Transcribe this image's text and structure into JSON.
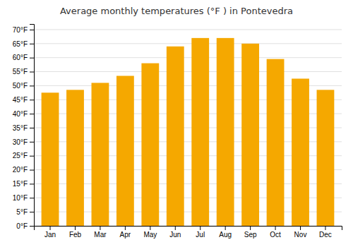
{
  "chart_data": {
    "type": "bar",
    "title": "Average monthly temperatures (°F ) in Pontevedra",
    "categories": [
      "Jan",
      "Feb",
      "Mar",
      "Apr",
      "May",
      "Jun",
      "Jul",
      "Aug",
      "Sep",
      "Oct",
      "Nov",
      "Dec"
    ],
    "values": [
      47.5,
      48.5,
      51,
      53.5,
      58,
      64,
      67,
      67,
      65,
      59.5,
      52.5,
      48.5
    ],
    "color": "#F5A800",
    "ylim": [
      0,
      72
    ],
    "yticks": [
      {
        "value": 0,
        "label": "0°F"
      },
      {
        "value": 5,
        "label": "5°F"
      },
      {
        "value": 10,
        "label": "10°F"
      },
      {
        "value": 15,
        "label": "15°F"
      },
      {
        "value": 20,
        "label": "20°F"
      },
      {
        "value": 25,
        "label": "25°F"
      },
      {
        "value": 30,
        "label": "30°F"
      },
      {
        "value": 35,
        "label": "35°F"
      },
      {
        "value": 40,
        "label": "40°F"
      },
      {
        "value": 45,
        "label": "45°F"
      },
      {
        "value": 50,
        "label": "50°F"
      },
      {
        "value": 55,
        "label": "55°F"
      },
      {
        "value": 60,
        "label": "60°F"
      },
      {
        "value": 65,
        "label": "65°F"
      },
      {
        "value": 70,
        "label": "70°F"
      }
    ],
    "grid": true
  }
}
